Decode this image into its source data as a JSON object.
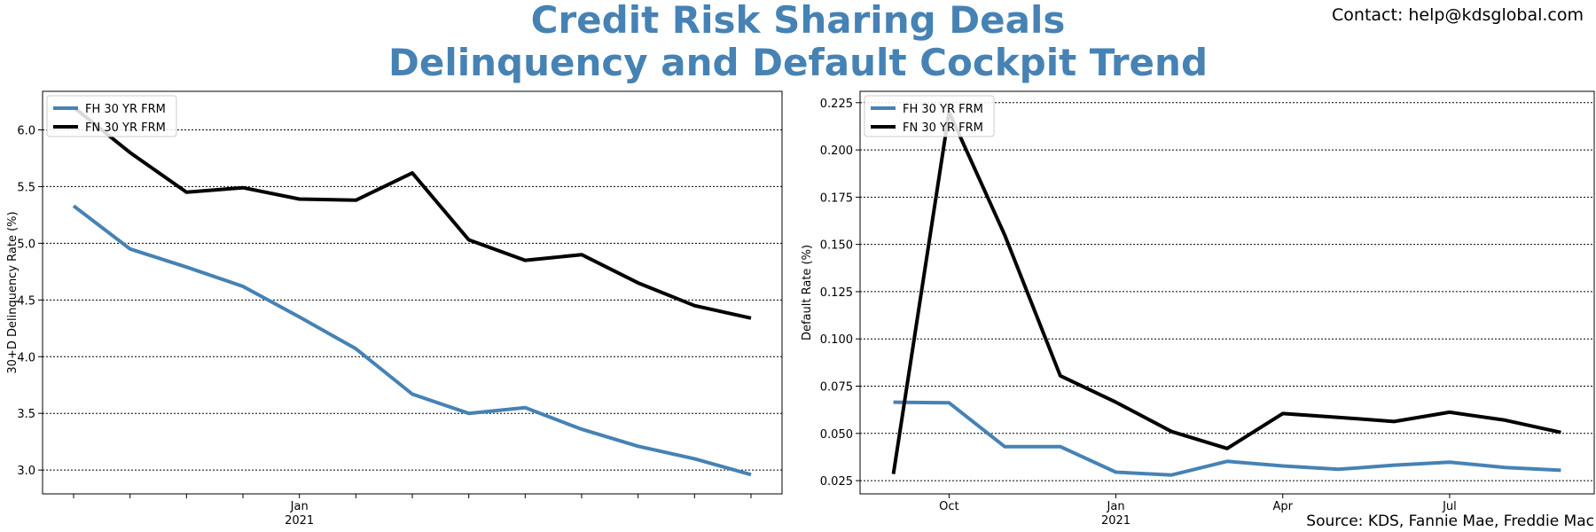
{
  "header": {
    "title_line1": "Credit Risk Sharing Deals",
    "title_line2": "Delinquency and Default Cockpit Trend",
    "contact": "Contact: help@kdsglobal.com",
    "source": "Source: KDS, Fannie Mae, Freddie Mac"
  },
  "colors": {
    "title": "#4682b4",
    "fh": "#4682b4",
    "fn": "#000000"
  },
  "chart_data": [
    {
      "type": "line",
      "title": "",
      "xlabel": "",
      "ylabel": "30+D Delinquency Rate (%)",
      "x": [
        "2020-09",
        "2020-10",
        "2020-11",
        "2020-12",
        "2021-01",
        "2021-02",
        "2021-03",
        "2021-04",
        "2021-05",
        "2021-06",
        "2021-07",
        "2021-08",
        "2021-09"
      ],
      "x_ticks": [
        {
          "index": 0,
          "label": ""
        },
        {
          "index": 1,
          "label": ""
        },
        {
          "index": 2,
          "label": ""
        },
        {
          "index": 3,
          "label": ""
        },
        {
          "index": 4,
          "label": "Jan\n2021"
        },
        {
          "index": 5,
          "label": ""
        },
        {
          "index": 6,
          "label": ""
        },
        {
          "index": 7,
          "label": ""
        },
        {
          "index": 8,
          "label": ""
        },
        {
          "index": 9,
          "label": ""
        },
        {
          "index": 10,
          "label": ""
        },
        {
          "index": 11,
          "label": ""
        },
        {
          "index": 12,
          "label": ""
        }
      ],
      "xlim": [
        -0.55,
        12.55
      ],
      "ylim": [
        2.79,
        6.34
      ],
      "yticks": [
        3.0,
        3.5,
        4.0,
        4.5,
        5.0,
        5.5,
        6.0
      ],
      "ytick_labels": [
        "3.0",
        "3.5",
        "4.0",
        "4.5",
        "5.0",
        "5.5",
        "6.0"
      ],
      "grid": "y",
      "legend_position": "upper-left",
      "series": [
        {
          "name": "FH 30 YR FRM",
          "color": "#4682b4",
          "values": [
            5.33,
            4.95,
            4.79,
            4.62,
            4.35,
            4.07,
            3.67,
            3.5,
            3.55,
            3.36,
            3.21,
            3.1,
            2.96
          ]
        },
        {
          "name": "FN 30 YR FRM",
          "color": "#000000",
          "values": [
            6.2,
            5.8,
            5.45,
            5.49,
            5.39,
            5.38,
            5.62,
            5.03,
            4.85,
            4.9,
            4.65,
            4.45,
            4.34
          ]
        }
      ]
    },
    {
      "type": "line",
      "title": "",
      "xlabel": "",
      "ylabel": "Default Rate (%)",
      "x": [
        "2020-09",
        "2020-10",
        "2020-11",
        "2020-12",
        "2021-01",
        "2021-02",
        "2021-03",
        "2021-04",
        "2021-05",
        "2021-06",
        "2021-07",
        "2021-08",
        "2021-09"
      ],
      "x_ticks": [
        {
          "index": 1,
          "label": "Oct"
        },
        {
          "index": 4,
          "label": "Jan\n2021"
        },
        {
          "index": 7,
          "label": "Apr"
        },
        {
          "index": 10,
          "label": "Jul"
        }
      ],
      "xlim": [
        -0.6,
        12.6
      ],
      "ylim": [
        0.018,
        0.231
      ],
      "yticks": [
        0.025,
        0.05,
        0.075,
        0.1,
        0.125,
        0.15,
        0.175,
        0.2,
        0.225
      ],
      "ytick_labels": [
        "0.025",
        "0.050",
        "0.075",
        "0.100",
        "0.125",
        "0.150",
        "0.175",
        "0.200",
        "0.225"
      ],
      "grid": "y",
      "legend_position": "upper-left",
      "series": [
        {
          "name": "FH 30 YR FRM",
          "color": "#4682b4",
          "values": [
            0.0665,
            0.0662,
            0.043,
            0.043,
            0.0295,
            0.028,
            0.0352,
            0.0328,
            0.031,
            0.0332,
            0.0348,
            0.032,
            0.0305
          ]
        },
        {
          "name": "FN 30 YR FRM",
          "color": "#000000",
          "values": [
            0.0285,
            0.22,
            0.155,
            0.0805,
            0.0665,
            0.051,
            0.042,
            0.0605,
            0.0585,
            0.0563,
            0.0612,
            0.057,
            0.0505
          ]
        }
      ]
    }
  ]
}
